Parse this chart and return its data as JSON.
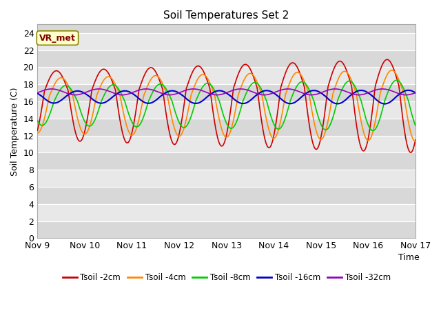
{
  "title": "Soil Temperatures Set 2",
  "xlabel": "Time",
  "ylabel": "Soil Temperature (C)",
  "xlim": [
    0,
    8
  ],
  "ylim": [
    0,
    25
  ],
  "yticks": [
    0,
    2,
    4,
    6,
    8,
    10,
    12,
    14,
    16,
    18,
    20,
    22,
    24
  ],
  "xtick_labels": [
    "Nov 9",
    "Nov 10",
    "Nov 11",
    "Nov 12",
    "Nov 13",
    "Nov 14",
    "Nov 15",
    "Nov 16",
    "Nov 17"
  ],
  "xtick_positions": [
    0,
    1,
    2,
    3,
    4,
    5,
    6,
    7,
    8
  ],
  "bg_color": "#e8e8e8",
  "fig_color": "#ffffff",
  "grid_color": "#ffffff",
  "annotation_text": "VR_met",
  "series": {
    "Tsoil -2cm": {
      "color": "#cc0000",
      "linewidth": 1.2
    },
    "Tsoil -4cm": {
      "color": "#ff8800",
      "linewidth": 1.2
    },
    "Tsoil -8cm": {
      "color": "#00cc00",
      "linewidth": 1.2
    },
    "Tsoil -16cm": {
      "color": "#0000cc",
      "linewidth": 1.5
    },
    "Tsoil -32cm": {
      "color": "#9900bb",
      "linewidth": 1.2
    }
  }
}
